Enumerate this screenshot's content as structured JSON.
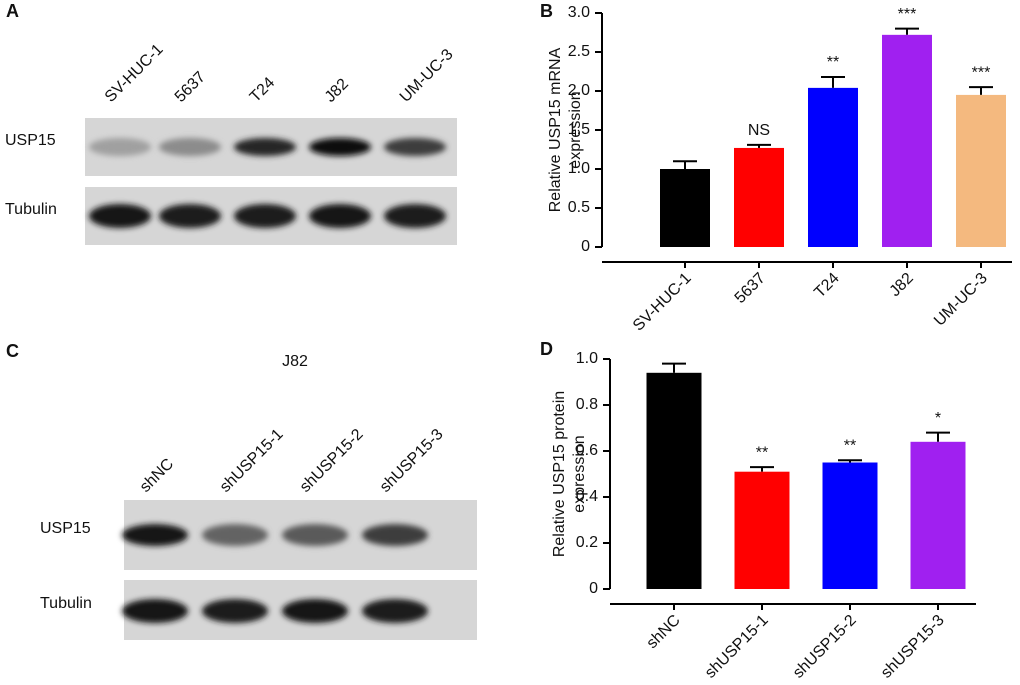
{
  "panel_a": {
    "label": "A",
    "lanes": [
      "SV-HUC-1",
      "5637",
      "T24",
      "J82",
      "UM-UC-3"
    ],
    "rows": [
      "USP15",
      "Tubulin"
    ]
  },
  "panel_c": {
    "label": "C",
    "title": "J82",
    "lanes": [
      "shNC",
      "shUSP15-1",
      "shUSP15-2",
      "shUSP15-3"
    ],
    "rows": [
      "USP15",
      "Tubulin"
    ]
  },
  "chart_data": [
    {
      "type": "bar",
      "panel": "B",
      "ylabel": [
        "Relative USP15 mRNA",
        "expression"
      ],
      "categories": [
        "SV-HUC-1",
        "5637",
        "T24",
        "J82",
        "UM-UC-3"
      ],
      "values": [
        1.0,
        1.27,
        2.04,
        2.72,
        1.95
      ],
      "errors": [
        0.1,
        0.04,
        0.14,
        0.08,
        0.1
      ],
      "annotations": [
        null,
        "NS",
        "**",
        "***",
        "***"
      ],
      "colors": [
        "#000000",
        "#ff0000",
        "#0000ff",
        "#a020f0",
        "#f4b97f"
      ],
      "ylim": [
        0,
        3.0
      ],
      "yticks": [
        0,
        0.5,
        {
          "value": 1,
          "label": "1.0"
        },
        1.5,
        {
          "value": 2,
          "label": "2.0"
        },
        2.5,
        {
          "value": 3,
          "label": "3.0"
        }
      ]
    },
    {
      "type": "bar",
      "panel": "D",
      "ylabel": [
        "Relative USP15 protein",
        "expression"
      ],
      "categories": [
        "shNC",
        "shUSP15-1",
        "shUSP15-2",
        "shUSP15-3"
      ],
      "values": [
        0.94,
        0.51,
        0.55,
        0.64
      ],
      "errors": [
        0.04,
        0.02,
        0.01,
        0.04
      ],
      "annotations": [
        null,
        "**",
        "**",
        "*"
      ],
      "colors": [
        "#000000",
        "#ff0000",
        "#0000ff",
        "#a020f0"
      ],
      "ylim": [
        0,
        1.0
      ],
      "yticks": [
        0,
        0.2,
        0.4,
        0.6,
        0.8,
        {
          "value": 1,
          "label": "1.0"
        }
      ]
    }
  ]
}
